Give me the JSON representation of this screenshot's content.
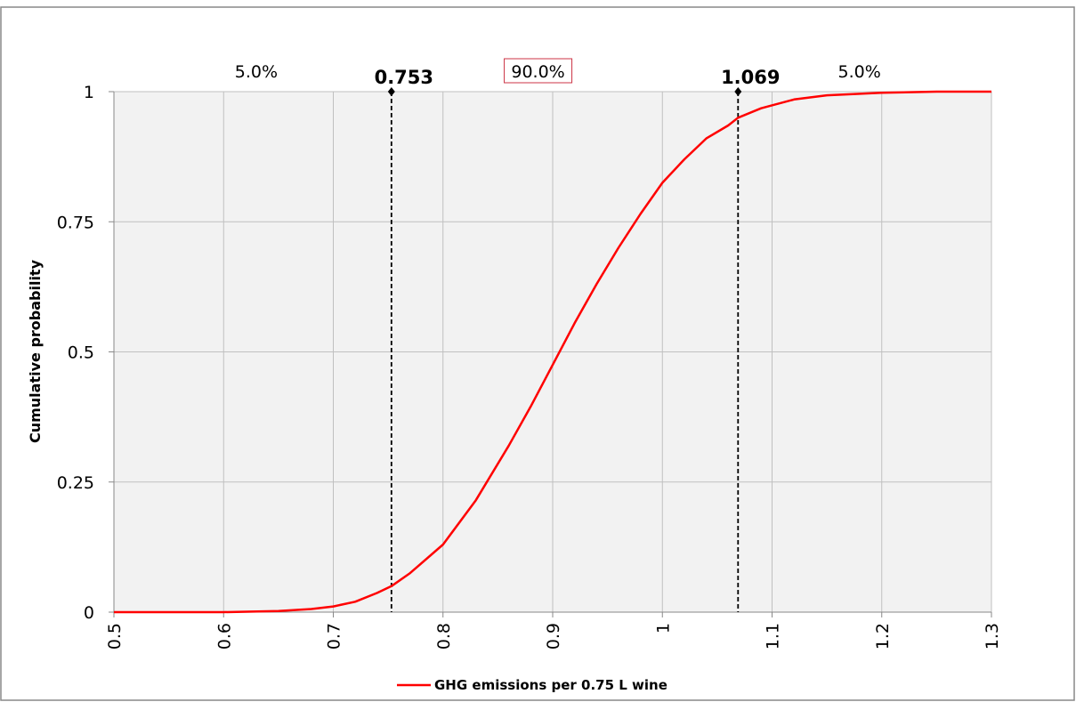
{
  "chart_data": {
    "type": "line",
    "ylabel": "Cumulative probability",
    "xlim": [
      0.5,
      1.3
    ],
    "ylim": [
      0,
      1
    ],
    "x_ticks": [
      "0.5",
      "0.6",
      "0.7",
      "0.8",
      "0.9",
      "1",
      "1.1",
      "1.2",
      "1.3"
    ],
    "y_ticks": [
      "0",
      "0.25",
      "0.5",
      "0.75",
      "1"
    ],
    "grid": true,
    "legend_position": "bottom",
    "series": [
      {
        "name": "GHG emissions per 0.75 L wine",
        "color": "#ff0000",
        "x": [
          0.5,
          0.55,
          0.6,
          0.65,
          0.68,
          0.7,
          0.72,
          0.74,
          0.753,
          0.77,
          0.8,
          0.83,
          0.86,
          0.88,
          0.9,
          0.92,
          0.94,
          0.96,
          0.98,
          1.0,
          1.02,
          1.04,
          1.06,
          1.069,
          1.09,
          1.12,
          1.15,
          1.2,
          1.25,
          1.3
        ],
        "y": [
          0.0,
          0.0,
          0.0,
          0.002,
          0.006,
          0.011,
          0.02,
          0.037,
          0.05,
          0.075,
          0.13,
          0.215,
          0.32,
          0.395,
          0.475,
          0.555,
          0.63,
          0.7,
          0.765,
          0.825,
          0.87,
          0.91,
          0.935,
          0.95,
          0.968,
          0.985,
          0.993,
          0.998,
          1.0,
          1.0
        ]
      }
    ],
    "markers": [
      {
        "x": 0.753,
        "label": "0.753",
        "line_color": "#000000",
        "dash": "dashed"
      },
      {
        "x": 1.069,
        "label": "1.069",
        "line_color": "#000000",
        "dash": "dashed"
      }
    ],
    "region_labels": [
      {
        "text": "5.0%",
        "region": "left",
        "boxed": false
      },
      {
        "text": "90.0%",
        "region": "center",
        "boxed": true,
        "box_color": "#cc3344"
      },
      {
        "text": "5.0%",
        "region": "right",
        "boxed": false
      }
    ],
    "colors": {
      "plot_background": "#f2f2f2",
      "grid": "#c0c0c0",
      "curve": "#ff0000",
      "frame": "#888888"
    }
  }
}
